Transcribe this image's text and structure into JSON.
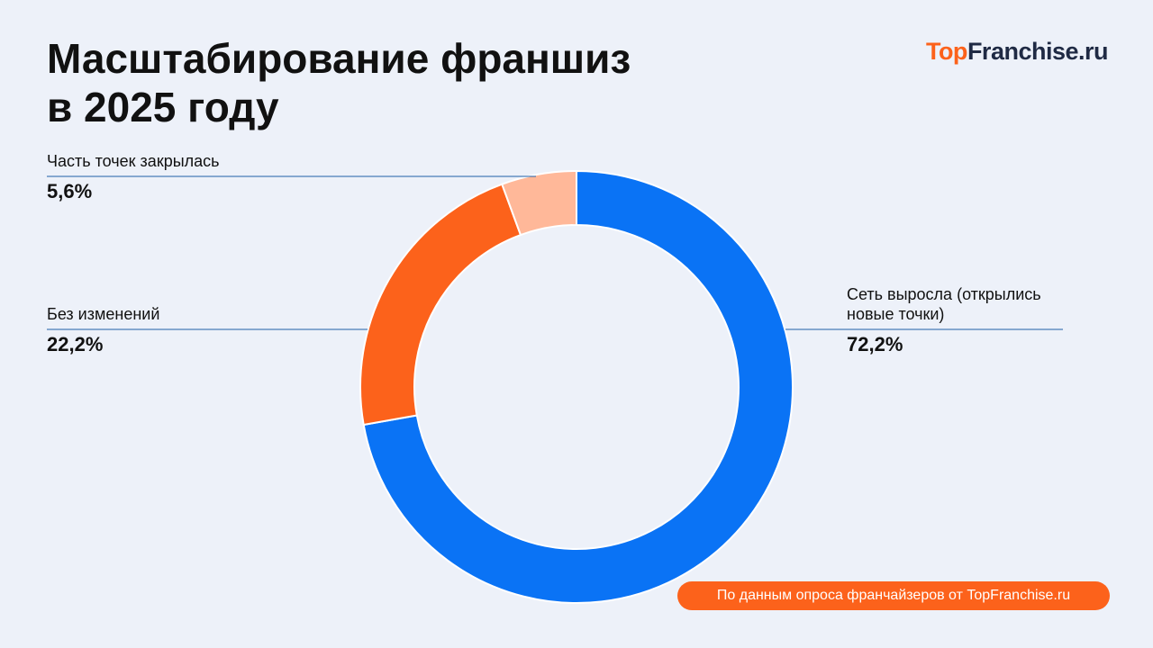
{
  "logo": [
    "Top",
    "Franchise.ru"
  ],
  "chart_data": {
    "type": "pie",
    "donut": true,
    "title": [
      "Масштабирование франшиз",
      "в 2025 году"
    ],
    "categories": [
      "Сеть выросла (открылись новые точки)",
      "Без изменений",
      "Часть точек закрылась"
    ],
    "values": [
      72.2,
      22.2,
      5.6
    ],
    "value_labels": [
      "72,2%",
      "22,2%",
      "5,6%"
    ],
    "colors": [
      "#0a73f5",
      "#fc621b",
      "#ffb899"
    ],
    "source": "По данным опроса франчайзеров от TopFranchise.ru"
  }
}
